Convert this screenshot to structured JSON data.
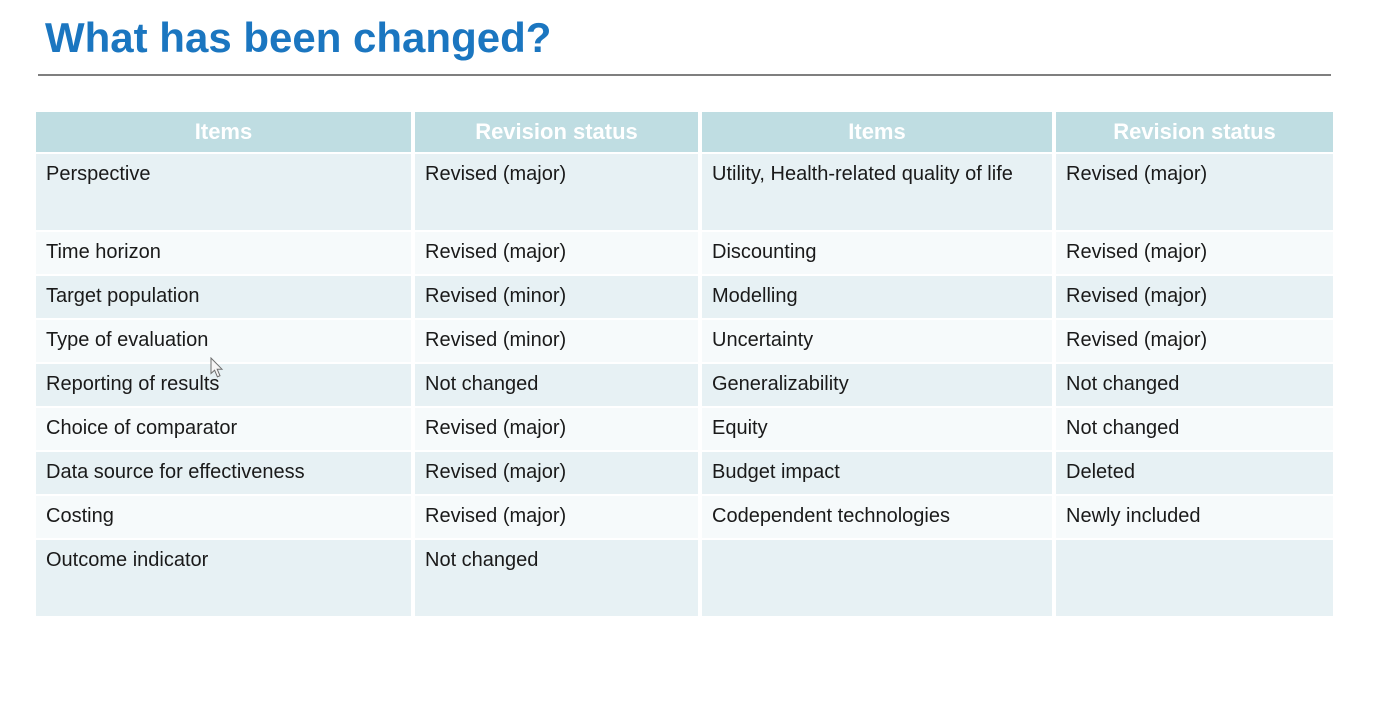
{
  "title": "What has been changed?",
  "colors": {
    "title_blue": "#1b76c0",
    "header_bg": "#bfdde2",
    "row_tint": "#e7f1f4",
    "row_light": "#f6fafb",
    "divider_gray": "#7f7f7f"
  },
  "table": {
    "headers": [
      "Items",
      "Revision status",
      "Items",
      "Revision status"
    ],
    "rows": [
      {
        "cells": [
          "Perspective",
          "Revised (major)",
          "Utility, Health-related quality of life",
          "Revised (major)"
        ]
      },
      {
        "cells": [
          "Time horizon",
          "Revised (major)",
          "Discounting",
          "Revised (major)"
        ]
      },
      {
        "cells": [
          "Target population",
          "Revised (minor)",
          "Modelling",
          "Revised (major)"
        ]
      },
      {
        "cells": [
          "Type of evaluation",
          "Revised (minor)",
          "Uncertainty",
          "Revised (major)"
        ]
      },
      {
        "cells": [
          "Reporting of results",
          "Not changed",
          "Generalizability",
          "Not changed"
        ]
      },
      {
        "cells": [
          "Choice of comparator",
          "Revised (major)",
          "Equity",
          "Not changed"
        ]
      },
      {
        "cells": [
          "Data source for effectiveness",
          "Revised (major)",
          "Budget impact",
          "Deleted"
        ]
      },
      {
        "cells": [
          "Costing",
          "Revised (major)",
          "Codependent technologies",
          "Newly included"
        ]
      },
      {
        "cells": [
          "Outcome indicator",
          "Not changed",
          "",
          ""
        ]
      }
    ]
  },
  "cursor": {
    "icon": "mouse-pointer"
  }
}
